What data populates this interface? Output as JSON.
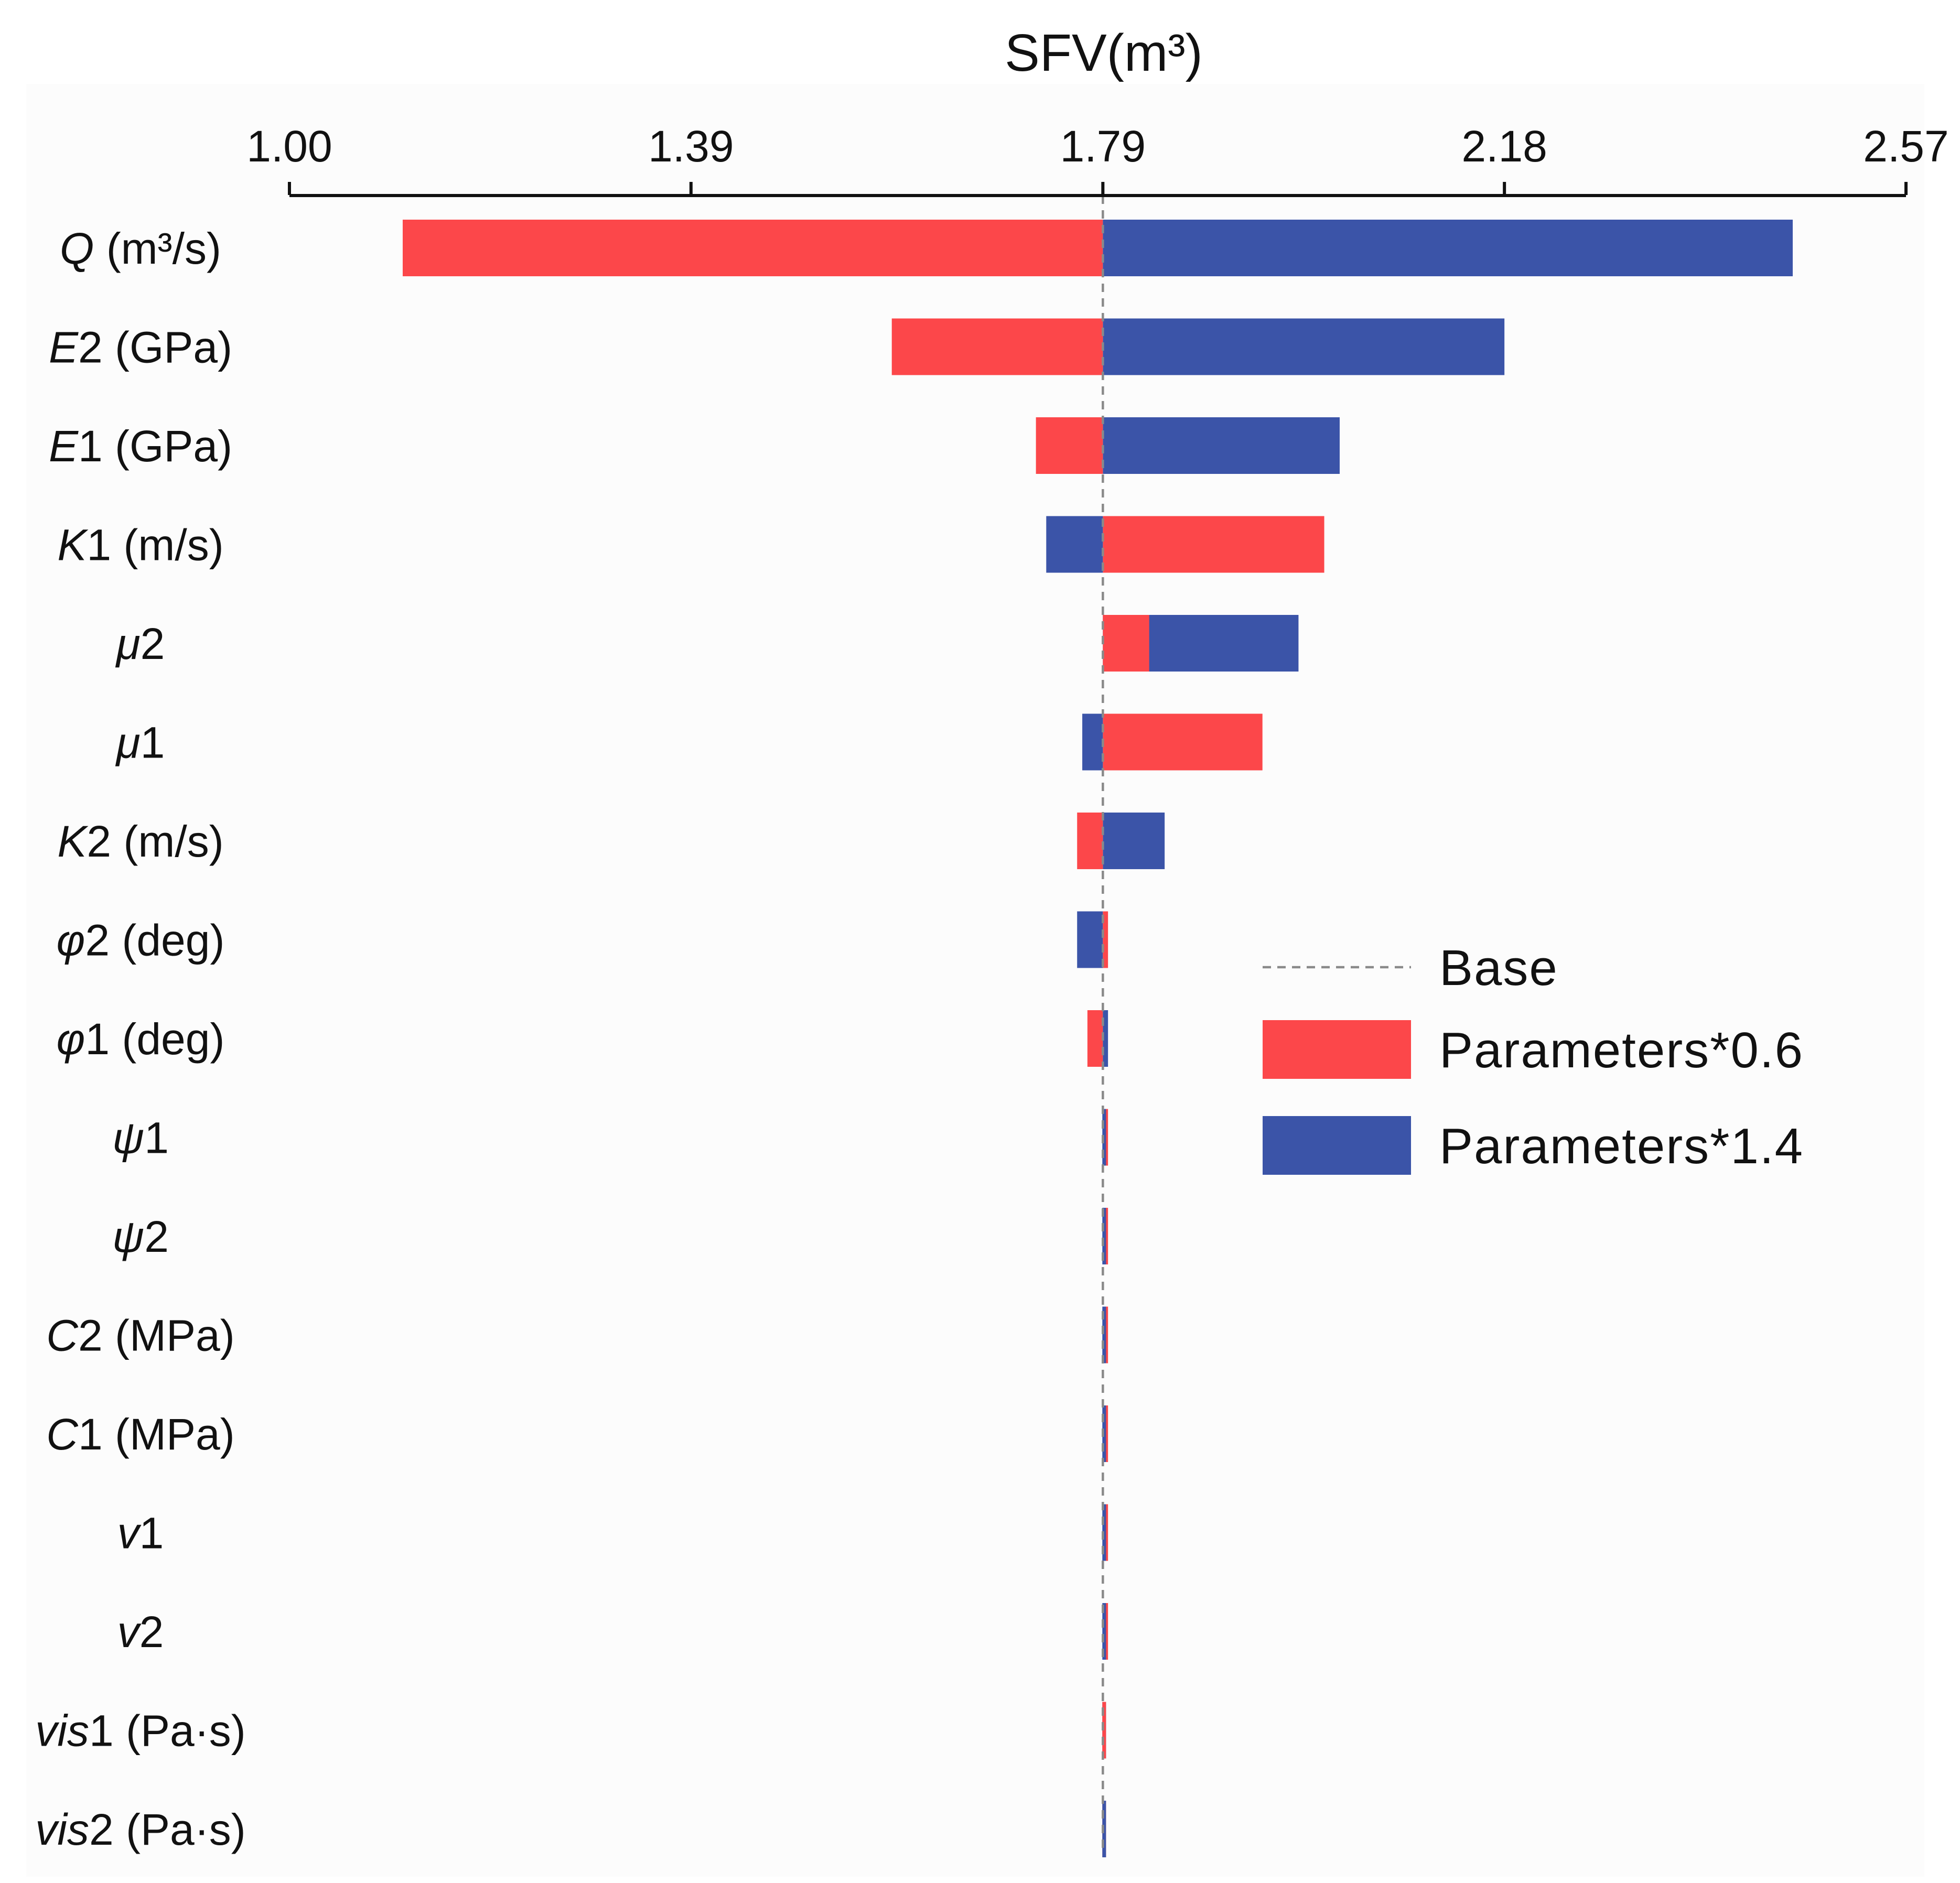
{
  "chart_data": {
    "type": "bar",
    "orientation": "horizontal-tornado",
    "title": "SFV(m³)",
    "xlabel": "SFV(m³)",
    "base_value": 1.79,
    "xlim": [
      1.0,
      2.57
    ],
    "xticks": [
      {
        "value": 1.0,
        "label": "1.00"
      },
      {
        "value": 1.39,
        "label": "1.39"
      },
      {
        "value": 1.79,
        "label": "1.79"
      },
      {
        "value": 2.18,
        "label": "2.18"
      },
      {
        "value": 2.57,
        "label": "2.57"
      }
    ],
    "categories": [
      {
        "id": "Q",
        "label": "Q (m³/s)",
        "sym": "Q",
        "rest": " (m³/s)"
      },
      {
        "id": "E2",
        "label": "E2 (GPa)",
        "sym": "E",
        "rest": "2 (GPa)"
      },
      {
        "id": "E1",
        "label": "E1 (GPa)",
        "sym": "E",
        "rest": "1 (GPa)"
      },
      {
        "id": "K1",
        "label": "K1 (m/s)",
        "sym": "K",
        "rest": "1 (m/s)"
      },
      {
        "id": "mu2",
        "label": "μ2",
        "sym": "μ",
        "rest": "2"
      },
      {
        "id": "mu1",
        "label": "μ1",
        "sym": "μ",
        "rest": "1"
      },
      {
        "id": "K2",
        "label": "K2 (m/s)",
        "sym": "K",
        "rest": "2 (m/s)"
      },
      {
        "id": "phi2",
        "label": "φ2 (deg)",
        "sym": "φ",
        "rest": "2 (deg)"
      },
      {
        "id": "phi1",
        "label": "φ1 (deg)",
        "sym": "φ",
        "rest": "1 (deg)"
      },
      {
        "id": "psi1",
        "label": "ψ1",
        "sym": "ψ",
        "rest": "1"
      },
      {
        "id": "psi2",
        "label": "ψ2",
        "sym": "ψ",
        "rest": "2"
      },
      {
        "id": "C2",
        "label": "C2 (MPa)",
        "sym": "C",
        "rest": "2 (MPa)"
      },
      {
        "id": "C1",
        "label": "C1 (MPa)",
        "sym": "C",
        "rest": "1 (MPa)"
      },
      {
        "id": "v1",
        "label": "v1",
        "sym": "v",
        "rest": "1"
      },
      {
        "id": "v2",
        "label": "v2",
        "sym": "v",
        "rest": "2"
      },
      {
        "id": "vis1",
        "label": "vis1 (Pa·s)",
        "sym": "vis",
        "rest": "1 (Pa·s)"
      },
      {
        "id": "vis2",
        "label": "vis2 (Pa·s)",
        "sym": "vis",
        "rest": "2 (Pa·s)"
      }
    ],
    "series": [
      {
        "name": "Parameters*0.6",
        "color": "#fc474a",
        "values": [
          1.11,
          1.585,
          1.725,
          2.005,
          1.835,
          1.945,
          1.765,
          1.795,
          1.775,
          1.795,
          1.795,
          1.795,
          1.795,
          1.795,
          1.795,
          1.79,
          1.79
        ]
      },
      {
        "name": "Parameters*1.4",
        "color": "#3b54a8",
        "values": [
          2.46,
          2.18,
          2.02,
          1.735,
          1.98,
          1.77,
          1.85,
          1.765,
          1.795,
          1.79,
          1.79,
          1.79,
          1.79,
          1.79,
          1.79,
          1.793,
          1.79
        ]
      }
    ],
    "legend": {
      "position": "right-middle",
      "entries": [
        {
          "label": "Base",
          "kind": "dashed-line",
          "color": "#8a8a8a"
        },
        {
          "label": "Parameters*0.6",
          "kind": "box",
          "color": "#fc474a"
        },
        {
          "label": "Parameters*1.4",
          "kind": "box",
          "color": "#3b54a8"
        }
      ]
    }
  }
}
